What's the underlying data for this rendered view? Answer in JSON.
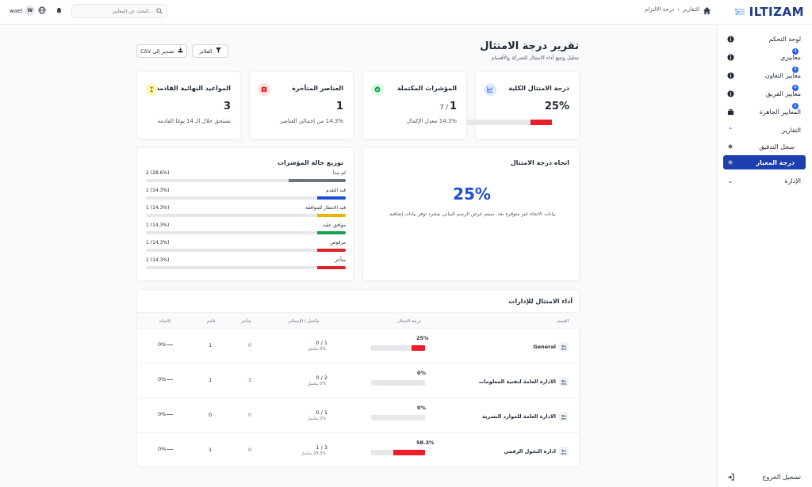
{
  "topbar": {
    "logo_text": "ILTIZAM",
    "breadcrumb": [
      "التقارير",
      "درجة الالتزام"
    ],
    "search_placeholder": "البحث عن المعايير...",
    "user_name": "wael",
    "user_initial": "W"
  },
  "sidebar": {
    "items": [
      {
        "label": "لوحة التحكم"
      },
      {
        "label": "معاييري",
        "badge": "4"
      },
      {
        "label": "معايير التعاون",
        "badge": "4"
      },
      {
        "label": "معايير الفريق",
        "badge": "4"
      },
      {
        "label": "المعايير الجاهزة",
        "badge": "1"
      },
      {
        "label": "التقارير"
      },
      {
        "label": "سجل التدقيق"
      },
      {
        "label": "درجة المعيار"
      },
      {
        "label": "الإدارة"
      }
    ],
    "logout": "تسجيل الخروج"
  },
  "header": {
    "title": "تقرير درجة الامتثال",
    "subtitle": "تحليل وتتبع أداء الامتثال للشركة والأقسام",
    "filters_label": "الفلاتر",
    "export_label": "تصدير إلى CSV"
  },
  "stats": [
    {
      "title": "درجة الامتثال الكلية",
      "value": "25%",
      "progress": 0.25,
      "color": "#2563eb"
    },
    {
      "title": "المؤشرات المكتملة",
      "value": "1",
      "value_suffix": "/ 7",
      "sub": "14.3% معدل الإكمال",
      "color": "#16a34a"
    },
    {
      "title": "العناصر المتأخرة",
      "value": "1",
      "sub": "14.3% من إجمالي العناصر",
      "color": "#dc2626"
    },
    {
      "title": "المواعيد النهائية القادمة",
      "value": "3",
      "sub": "تستحق خلال الـ 14 يومًا القادمة",
      "color": "#ca8a04"
    }
  ],
  "trend": {
    "title": "اتجاه درجة الامتثال",
    "value": "25%",
    "message": "بيانات الاتجاه غير متوفرة بعد. سيتم عرض الرسم البياني بمجرد توفر بيانات إضافية."
  },
  "distribution": {
    "title": "توزيع حالة المؤشرات",
    "rows": [
      {
        "label": "لم يبدأ",
        "count": "2 (28.6%)",
        "fraction": 0.286,
        "color": "#6b7280"
      },
      {
        "label": "قيد التقدم",
        "count": "1 (14.3%)",
        "fraction": 0.143,
        "color": "#1d4ed8"
      },
      {
        "label": "قيد الانتظار للموافقة",
        "count": "1 (14.3%)",
        "fraction": 0.143,
        "color": "#eab308"
      },
      {
        "label": "موافق عليه",
        "count": "1 (14.3%)",
        "fraction": 0.143,
        "color": "#16a34a"
      },
      {
        "label": "مرفوض",
        "count": "1 (14.3%)",
        "fraction": 0.143,
        "color": "#dc2626"
      },
      {
        "label": "متأخر",
        "count": "1 (14.3%)",
        "fraction": 0.143,
        "color": "#dc2626"
      }
    ]
  },
  "table": {
    "title": "أداء الامتثال للإدارات",
    "headers": {
      "dept": "القسم",
      "score": "درجة الامتثال",
      "completed": "مكتمل / الإجمالي",
      "overdue": "متأخر",
      "upcoming": "قادم",
      "trend": "الاتجاه"
    },
    "rows": [
      {
        "dept": "General",
        "score": "25%",
        "score_frac": 0.25,
        "completed": "0 / 1",
        "completed_sub": "0% مكتمل",
        "overdue": "0",
        "upcoming": "1",
        "trend": "0%"
      },
      {
        "dept": "الادارة العامة لتقنية المعلومات",
        "score": "0%",
        "score_frac": 0,
        "completed": "0 / 2",
        "completed_sub": "0% مكتمل",
        "overdue": "1",
        "upcoming": "1",
        "trend": "0%"
      },
      {
        "dept": "الادارة العامة للموارد البشرية",
        "score": "0%",
        "score_frac": 0,
        "completed": "0 / 1",
        "completed_sub": "0% مكتمل",
        "overdue": "0",
        "upcoming": "0",
        "trend": "0%"
      },
      {
        "dept": "ادارة التحول الرقمي",
        "score": "58.3%",
        "score_frac": 0.583,
        "completed": "1 / 3",
        "completed_sub": "33.3% مكتمل",
        "overdue": "0",
        "upcoming": "1",
        "trend": "0%"
      }
    ]
  }
}
